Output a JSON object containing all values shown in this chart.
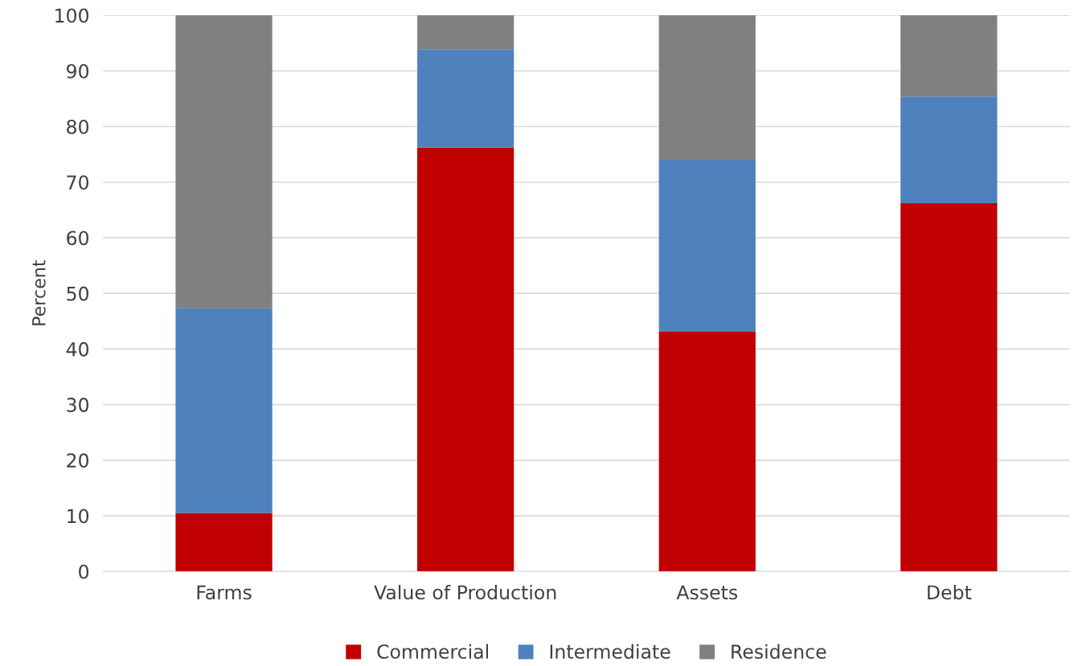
{
  "chart_data": {
    "type": "bar",
    "stacked": true,
    "ylabel": "Percent",
    "categories": [
      "Farms",
      "Value of Production",
      "Assets",
      "Debt"
    ],
    "series": [
      {
        "name": "Commercial",
        "color": "#c00000",
        "values": [
          10.5,
          76.2,
          43.1,
          66.2
        ]
      },
      {
        "name": "Intermediate",
        "color": "#4f81bd",
        "values": [
          36.9,
          17.7,
          30.9,
          19.2
        ]
      },
      {
        "name": "Residence",
        "color": "#808080",
        "values": [
          52.6,
          6.1,
          26.0,
          14.6
        ]
      }
    ],
    "ylim": [
      0,
      100
    ],
    "yticks": [
      0,
      10,
      20,
      30,
      40,
      50,
      60,
      70,
      80,
      90,
      100
    ],
    "grid": "y",
    "legend": "bottom"
  }
}
